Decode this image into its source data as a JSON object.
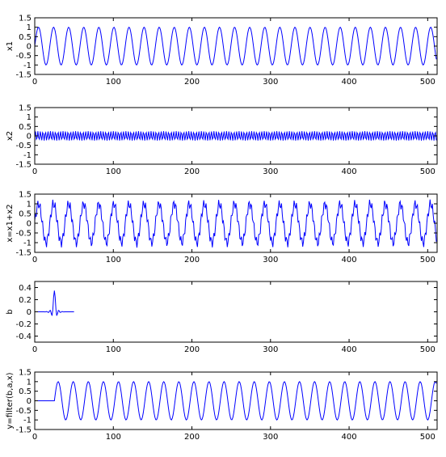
{
  "chart_data": [
    {
      "type": "line",
      "ylabel": "x1",
      "xlim": [
        0,
        512
      ],
      "ylim": [
        -1.5,
        1.5
      ],
      "xticks": [
        "0",
        "100",
        "200",
        "300",
        "400",
        "500"
      ],
      "yticks": [
        "1.5",
        "1",
        "0.5",
        "0",
        "-0.5",
        "-1",
        "-1.5"
      ],
      "grid": false,
      "series": [
        {
          "signal": "sine",
          "n": 512,
          "amplitude": 1.0,
          "cycles_per_sample": 0.0521,
          "color": "#0000ff"
        }
      ]
    },
    {
      "type": "line",
      "ylabel": "x2",
      "xlim": [
        0,
        512
      ],
      "ylim": [
        -1.5,
        1.5
      ],
      "xticks": [
        "0",
        "100",
        "200",
        "300",
        "400",
        "500"
      ],
      "yticks": [
        "1.5",
        "1",
        "0.5",
        "0",
        "-0.5",
        "-1",
        "-1.5"
      ],
      "grid": false,
      "series": [
        {
          "signal": "sine",
          "n": 512,
          "amplitude": 0.25,
          "cycles_per_sample": 0.3125,
          "color": "#0000ff"
        }
      ]
    },
    {
      "type": "line",
      "ylabel": "x=x1+x2",
      "xlim": [
        0,
        512
      ],
      "ylim": [
        -1.5,
        1.5
      ],
      "xticks": [
        "0",
        "100",
        "200",
        "300",
        "400",
        "500"
      ],
      "yticks": [
        "1.5",
        "1",
        "0.5",
        "0",
        "-0.5",
        "-1",
        "-1.5"
      ],
      "grid": false,
      "series": [
        {
          "signal": "sum",
          "n": 512,
          "components": [
            {
              "amplitude": 1.0,
              "cycles_per_sample": 0.0521
            },
            {
              "amplitude": 0.25,
              "cycles_per_sample": 0.3125
            }
          ],
          "color": "#0000ff"
        }
      ]
    },
    {
      "type": "line",
      "ylabel": "b",
      "xlim": [
        0,
        512
      ],
      "ylim": [
        -0.5,
        0.5
      ],
      "xticks": [
        "0",
        "100",
        "200",
        "300",
        "400",
        "500"
      ],
      "yticks": [
        "0.4",
        "0.2",
        "0",
        "-0.2",
        "-0.4"
      ],
      "grid": false,
      "series": [
        {
          "signal": "fir",
          "n": 51,
          "peak": 0.35,
          "center": 25,
          "color": "#0000ff"
        }
      ]
    },
    {
      "type": "line",
      "ylabel": "y=filter(b,a,x)",
      "xlim": [
        0,
        512
      ],
      "ylim": [
        -1.5,
        1.5
      ],
      "xticks": [
        "0",
        "100",
        "200",
        "300",
        "400",
        "500"
      ],
      "yticks": [
        "1.5",
        "1",
        "0.5",
        "0",
        "-0.5",
        "-1",
        "-1.5"
      ],
      "grid": false,
      "series": [
        {
          "signal": "delayed_sine",
          "n": 512,
          "amplitude": 1.0,
          "cycles_per_sample": 0.0521,
          "delay": 25,
          "color": "#0000ff"
        }
      ]
    }
  ]
}
